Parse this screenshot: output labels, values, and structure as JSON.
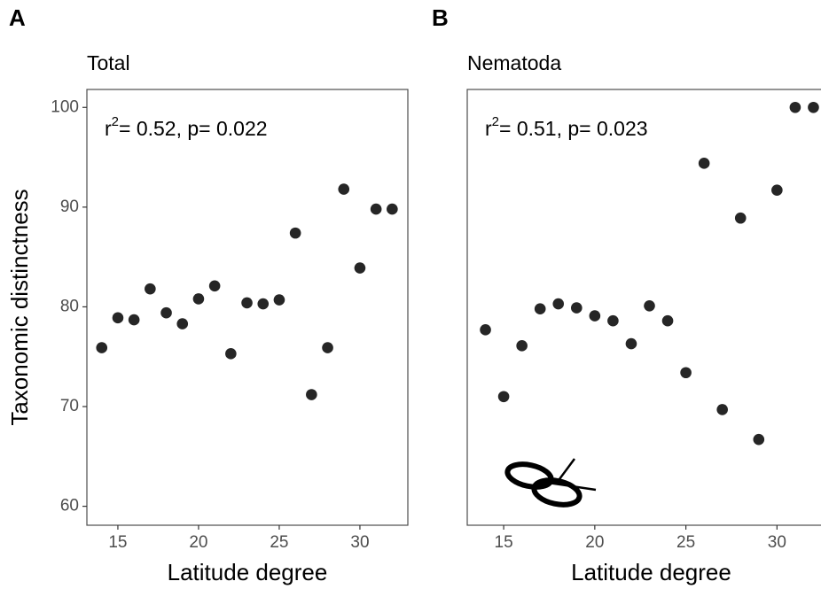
{
  "chart_data": [
    {
      "type": "scatter",
      "panel_label": "A",
      "title": "Total",
      "annotation": {
        "symbol": "r",
        "exponent": "2",
        "text": "= 0.52, p= 0.022"
      },
      "xlabel": "Latitude degree",
      "ylabel": "Taxonomic distinctness",
      "x": [
        14,
        15,
        16,
        17,
        18,
        19,
        20,
        21,
        22,
        23,
        24,
        25,
        26,
        27,
        28,
        29,
        30,
        31,
        32
      ],
      "values": [
        75.9,
        78.9,
        78.7,
        81.8,
        79.4,
        78.3,
        80.8,
        82.1,
        75.3,
        80.4,
        80.3,
        80.7,
        87.4,
        71.2,
        75.9,
        91.8,
        83.9,
        89.8,
        89.8
      ],
      "color": "#262626",
      "xlim": [
        13.08,
        32.97
      ],
      "xticks": [
        15,
        20,
        25,
        30
      ],
      "ylim": [
        58.1,
        101.8
      ],
      "yticks": [
        60,
        70,
        80,
        90,
        100
      ]
    },
    {
      "type": "scatter",
      "panel_label": "B",
      "title": "Nematoda",
      "annotation": {
        "symbol": "r",
        "exponent": "2",
        "text": "= 0.51, p= 0.023"
      },
      "xlabel": "Latitude degree",
      "x": [
        14,
        15,
        16,
        17,
        18,
        19,
        20,
        21,
        22,
        23,
        24,
        25,
        26,
        27,
        28,
        29,
        30,
        31,
        32
      ],
      "values": [
        77.7,
        71.0,
        76.1,
        79.8,
        80.3,
        79.9,
        79.1,
        78.6,
        76.3,
        80.1,
        78.6,
        73.4,
        94.4,
        69.7,
        88.9,
        66.7,
        91.7,
        100,
        100
      ],
      "color": "#262626",
      "xlim": [
        13.0,
        33.0
      ],
      "xticks": [
        15,
        20,
        25,
        30
      ],
      "ylim": [
        58.1,
        101.8
      ]
    }
  ]
}
